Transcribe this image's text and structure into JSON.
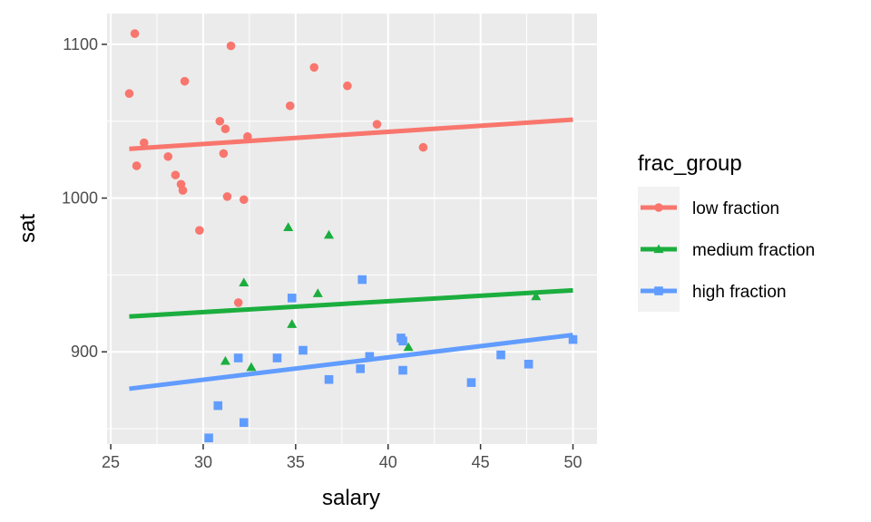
{
  "chart_data": {
    "type": "scatter",
    "xlabel": "salary",
    "ylabel": "sat",
    "xlim": [
      24.8,
      51.3
    ],
    "ylim": [
      840,
      1120
    ],
    "x_ticks": [
      25,
      30,
      35,
      40,
      45,
      50
    ],
    "y_ticks": [
      900,
      1000,
      1100
    ],
    "x_tick_labels": [
      "25",
      "30",
      "35",
      "40",
      "45",
      "50"
    ],
    "y_tick_labels": [
      "900",
      "1000",
      "1100"
    ],
    "grid": true,
    "legend": {
      "title": "frac_group",
      "position": "right"
    },
    "series": [
      {
        "name": "low fraction",
        "color": "#F8766D",
        "marker": "circle",
        "points": [
          [
            26.0,
            1068
          ],
          [
            26.3,
            1107
          ],
          [
            26.4,
            1021
          ],
          [
            26.8,
            1036
          ],
          [
            28.1,
            1027
          ],
          [
            28.5,
            1015
          ],
          [
            28.8,
            1009
          ],
          [
            28.9,
            1005
          ],
          [
            29.0,
            1076
          ],
          [
            29.8,
            979
          ],
          [
            30.9,
            1050
          ],
          [
            31.1,
            1029
          ],
          [
            31.2,
            1045
          ],
          [
            31.3,
            1001
          ],
          [
            31.5,
            1099
          ],
          [
            31.9,
            932
          ],
          [
            32.2,
            999
          ],
          [
            32.4,
            1040
          ],
          [
            34.7,
            1060
          ],
          [
            36.0,
            1085
          ],
          [
            37.8,
            1073
          ],
          [
            39.4,
            1048
          ],
          [
            41.9,
            1033
          ]
        ],
        "fit": [
          [
            26.0,
            1032
          ],
          [
            50.0,
            1051
          ]
        ]
      },
      {
        "name": "medium fraction",
        "color": "#1BAE3E",
        "marker": "triangle",
        "points": [
          [
            31.2,
            894
          ],
          [
            32.2,
            945
          ],
          [
            32.6,
            890
          ],
          [
            34.6,
            981
          ],
          [
            34.8,
            918
          ],
          [
            36.2,
            938
          ],
          [
            36.8,
            976
          ],
          [
            41.1,
            903
          ],
          [
            48.0,
            936
          ]
        ],
        "fit": [
          [
            26.0,
            923
          ],
          [
            50.0,
            940
          ]
        ]
      },
      {
        "name": "high fraction",
        "color": "#619CFF",
        "marker": "square",
        "points": [
          [
            30.3,
            844
          ],
          [
            30.8,
            865
          ],
          [
            31.9,
            896
          ],
          [
            32.2,
            854
          ],
          [
            34.0,
            896
          ],
          [
            34.8,
            935
          ],
          [
            35.4,
            901
          ],
          [
            36.8,
            882
          ],
          [
            38.5,
            889
          ],
          [
            38.6,
            947
          ],
          [
            39.0,
            897
          ],
          [
            40.7,
            909
          ],
          [
            40.8,
            907
          ],
          [
            40.8,
            888
          ],
          [
            44.5,
            880
          ],
          [
            46.1,
            898
          ],
          [
            47.6,
            892
          ],
          [
            50.0,
            908
          ]
        ],
        "fit": [
          [
            26.0,
            876
          ],
          [
            50.0,
            911
          ]
        ]
      }
    ]
  }
}
